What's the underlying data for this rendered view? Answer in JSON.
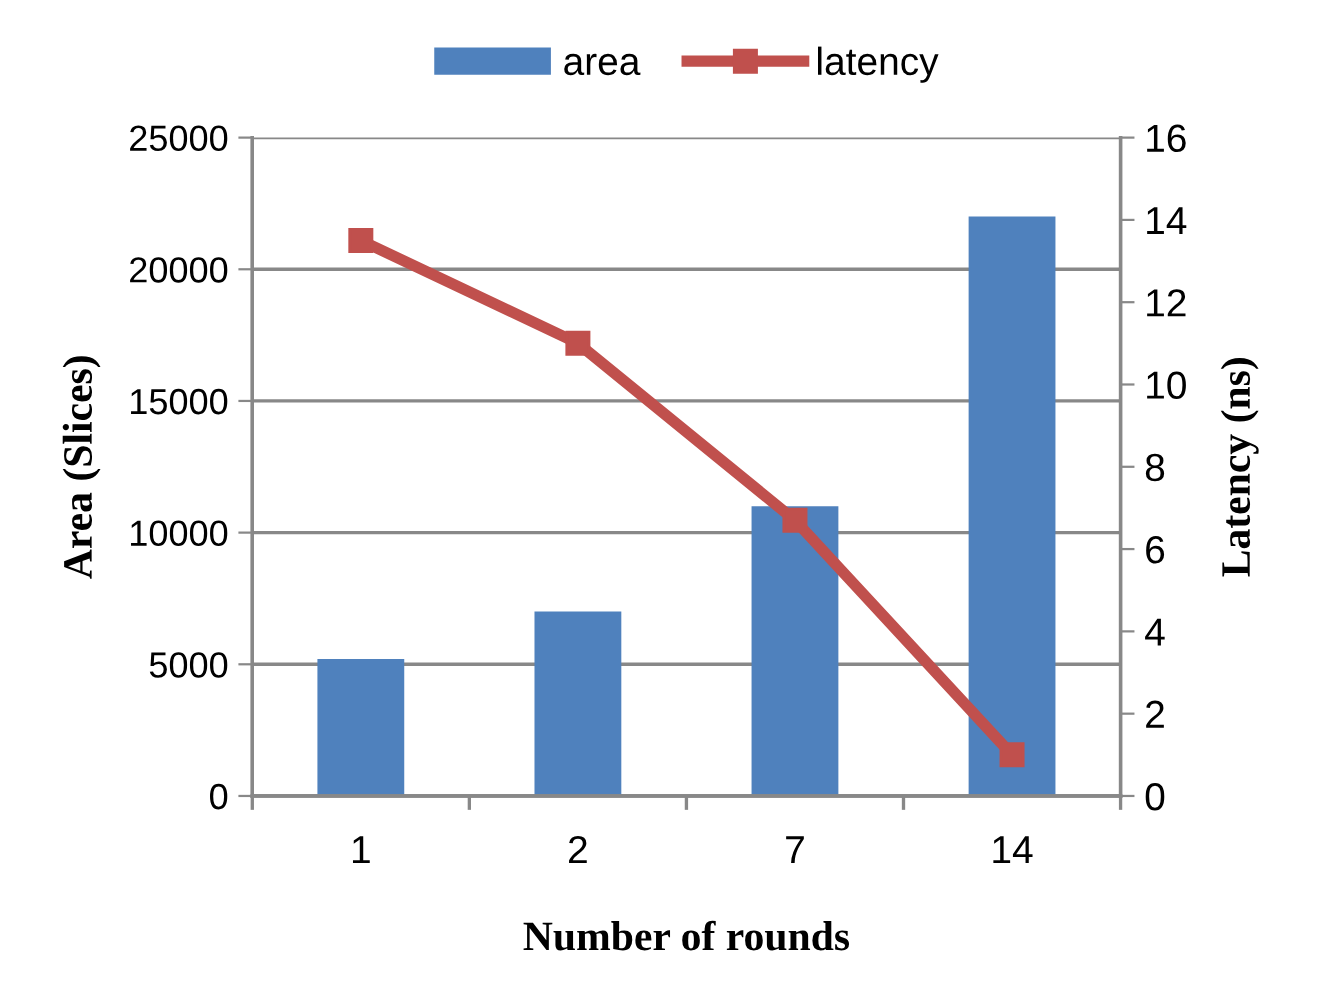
{
  "chart_data": {
    "type": "bar",
    "xlabel": "Number of rounds",
    "ylabel": "Area (Slices)",
    "y2label": "Latency (ns)",
    "categories": [
      "1",
      "2",
      "7",
      "14"
    ],
    "series": [
      {
        "name": "area",
        "color": "#4f81bd",
        "values": [
          5200,
          7000,
          11000,
          22000
        ]
      },
      {
        "name": "latency",
        "type": "line",
        "axis": "y2",
        "color": "#c0504d",
        "values": [
          13.5,
          11.0,
          6.7,
          1.0
        ]
      }
    ],
    "ylim": [
      0,
      25000
    ],
    "yticks": [
      0,
      5000,
      10000,
      15000,
      20000,
      25000
    ],
    "y2lim": [
      0,
      16
    ],
    "y2ticks": [
      0,
      2,
      4,
      6,
      8,
      10,
      12,
      14,
      16
    ],
    "grid": "y",
    "legend": "top",
    "marker": "square",
    "line_style": "solid"
  }
}
